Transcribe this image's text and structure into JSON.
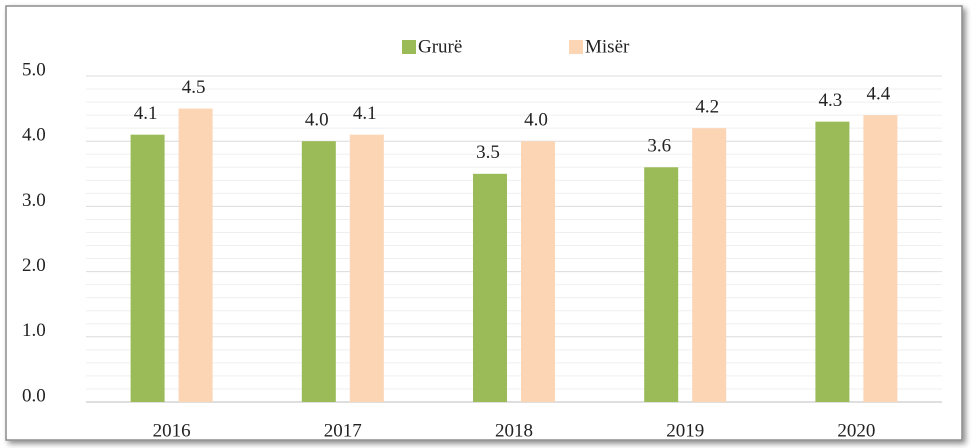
{
  "chart_data": {
    "type": "bar",
    "categories": [
      "2016",
      "2017",
      "2018",
      "2019",
      "2020"
    ],
    "series": [
      {
        "name": "Grurë",
        "color": "#9bbb59",
        "values": [
          4.1,
          4.0,
          3.5,
          3.6,
          4.3
        ],
        "value_labels": [
          "4.1",
          "4.0",
          "3.5",
          "3.6",
          "4.3"
        ]
      },
      {
        "name": "Misër",
        "color": "#fcd5b5",
        "values": [
          4.5,
          4.1,
          4.0,
          4.2,
          4.4
        ],
        "value_labels": [
          "4.5",
          "4.1",
          "4.0",
          "4.2",
          "4.4"
        ]
      }
    ],
    "ylim": [
      0,
      5
    ],
    "yticks": [
      {
        "value": 0,
        "label": "0.0"
      },
      {
        "value": 1,
        "label": "1.0"
      },
      {
        "value": 2,
        "label": "2.0"
      },
      {
        "value": 3,
        "label": "3.0"
      },
      {
        "value": 4,
        "label": "4.0"
      },
      {
        "value": 5,
        "label": "5.0"
      }
    ],
    "minor_yticks": [
      0.2,
      0.4,
      0.6,
      0.8,
      1.2,
      1.4,
      1.6,
      1.8,
      2.2,
      2.4,
      2.6,
      2.8,
      3.2,
      3.4,
      3.6,
      3.8,
      4.2,
      4.4,
      4.6,
      4.8
    ],
    "grid": true,
    "legend": "top"
  }
}
